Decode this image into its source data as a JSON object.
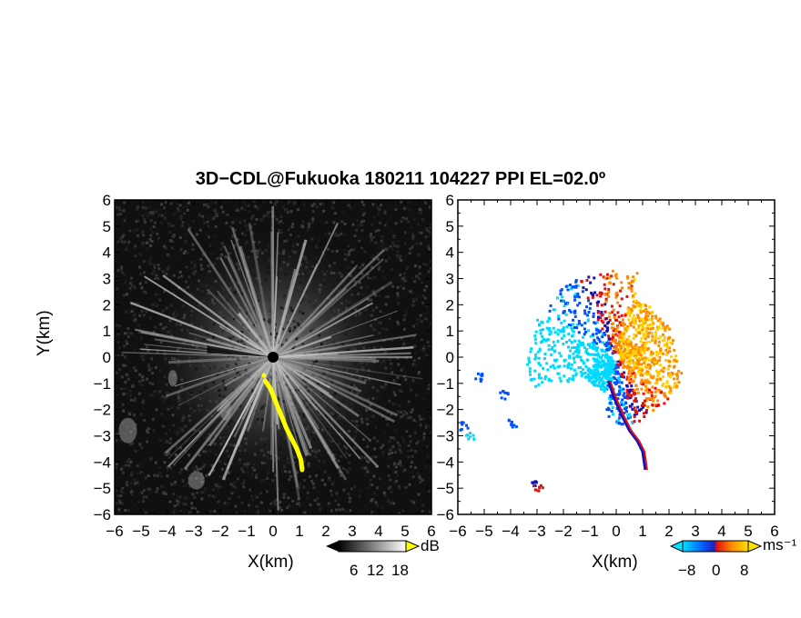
{
  "title": "3D−CDL@Fukuoka 180211 104227 PPI EL=02.0º",
  "colors": {
    "accent": "#ffff00",
    "cyan": "#00d8ff",
    "blue": "#0050ff",
    "darkblue": "#1010c0",
    "red": "#e01010",
    "orange": "#ff8c00",
    "yellow": "#ffd000",
    "background_left": "#0d0d0d"
  },
  "chart_data": [
    {
      "type": "heatmap",
      "panel": "left",
      "quantity": "backscatter intensity",
      "xlabel": "X(km)",
      "ylabel": "Y(km)",
      "xlim": [
        -6,
        6
      ],
      "ylim": [
        -6,
        6
      ],
      "xticks": [
        "−6",
        "−5",
        "−4",
        "−3",
        "−2",
        "−1",
        "0",
        "1",
        "2",
        "3",
        "4",
        "5",
        "6"
      ],
      "yticks": [
        "6",
        "5",
        "4",
        "3",
        "2",
        "1",
        "0",
        "−1",
        "−2",
        "−3",
        "−4",
        "−5",
        "−6"
      ],
      "colorbar": {
        "unit": "dB",
        "ticks": [
          "6",
          "12",
          "18"
        ],
        "cmap": "grayscale"
      }
    },
    {
      "type": "heatmap",
      "panel": "right",
      "quantity": "radial velocity",
      "xlabel": "X(km)",
      "xlim": [
        -6,
        6
      ],
      "ylim": [
        -6,
        6
      ],
      "xticks": [
        "−6",
        "−5",
        "−4",
        "−3",
        "−2",
        "−1",
        "0",
        "1",
        "2",
        "3",
        "4",
        "5",
        "6"
      ],
      "yticks": [
        "6",
        "5",
        "4",
        "3",
        "2",
        "1",
        "0",
        "−1",
        "−2",
        "−3",
        "−4",
        "−5",
        "−6"
      ],
      "colorbar": {
        "unit": "ms⁻¹",
        "ticks": [
          "−8",
          "0",
          "8"
        ],
        "cmap": "cyan-blue-red-orange-yellow"
      }
    }
  ]
}
